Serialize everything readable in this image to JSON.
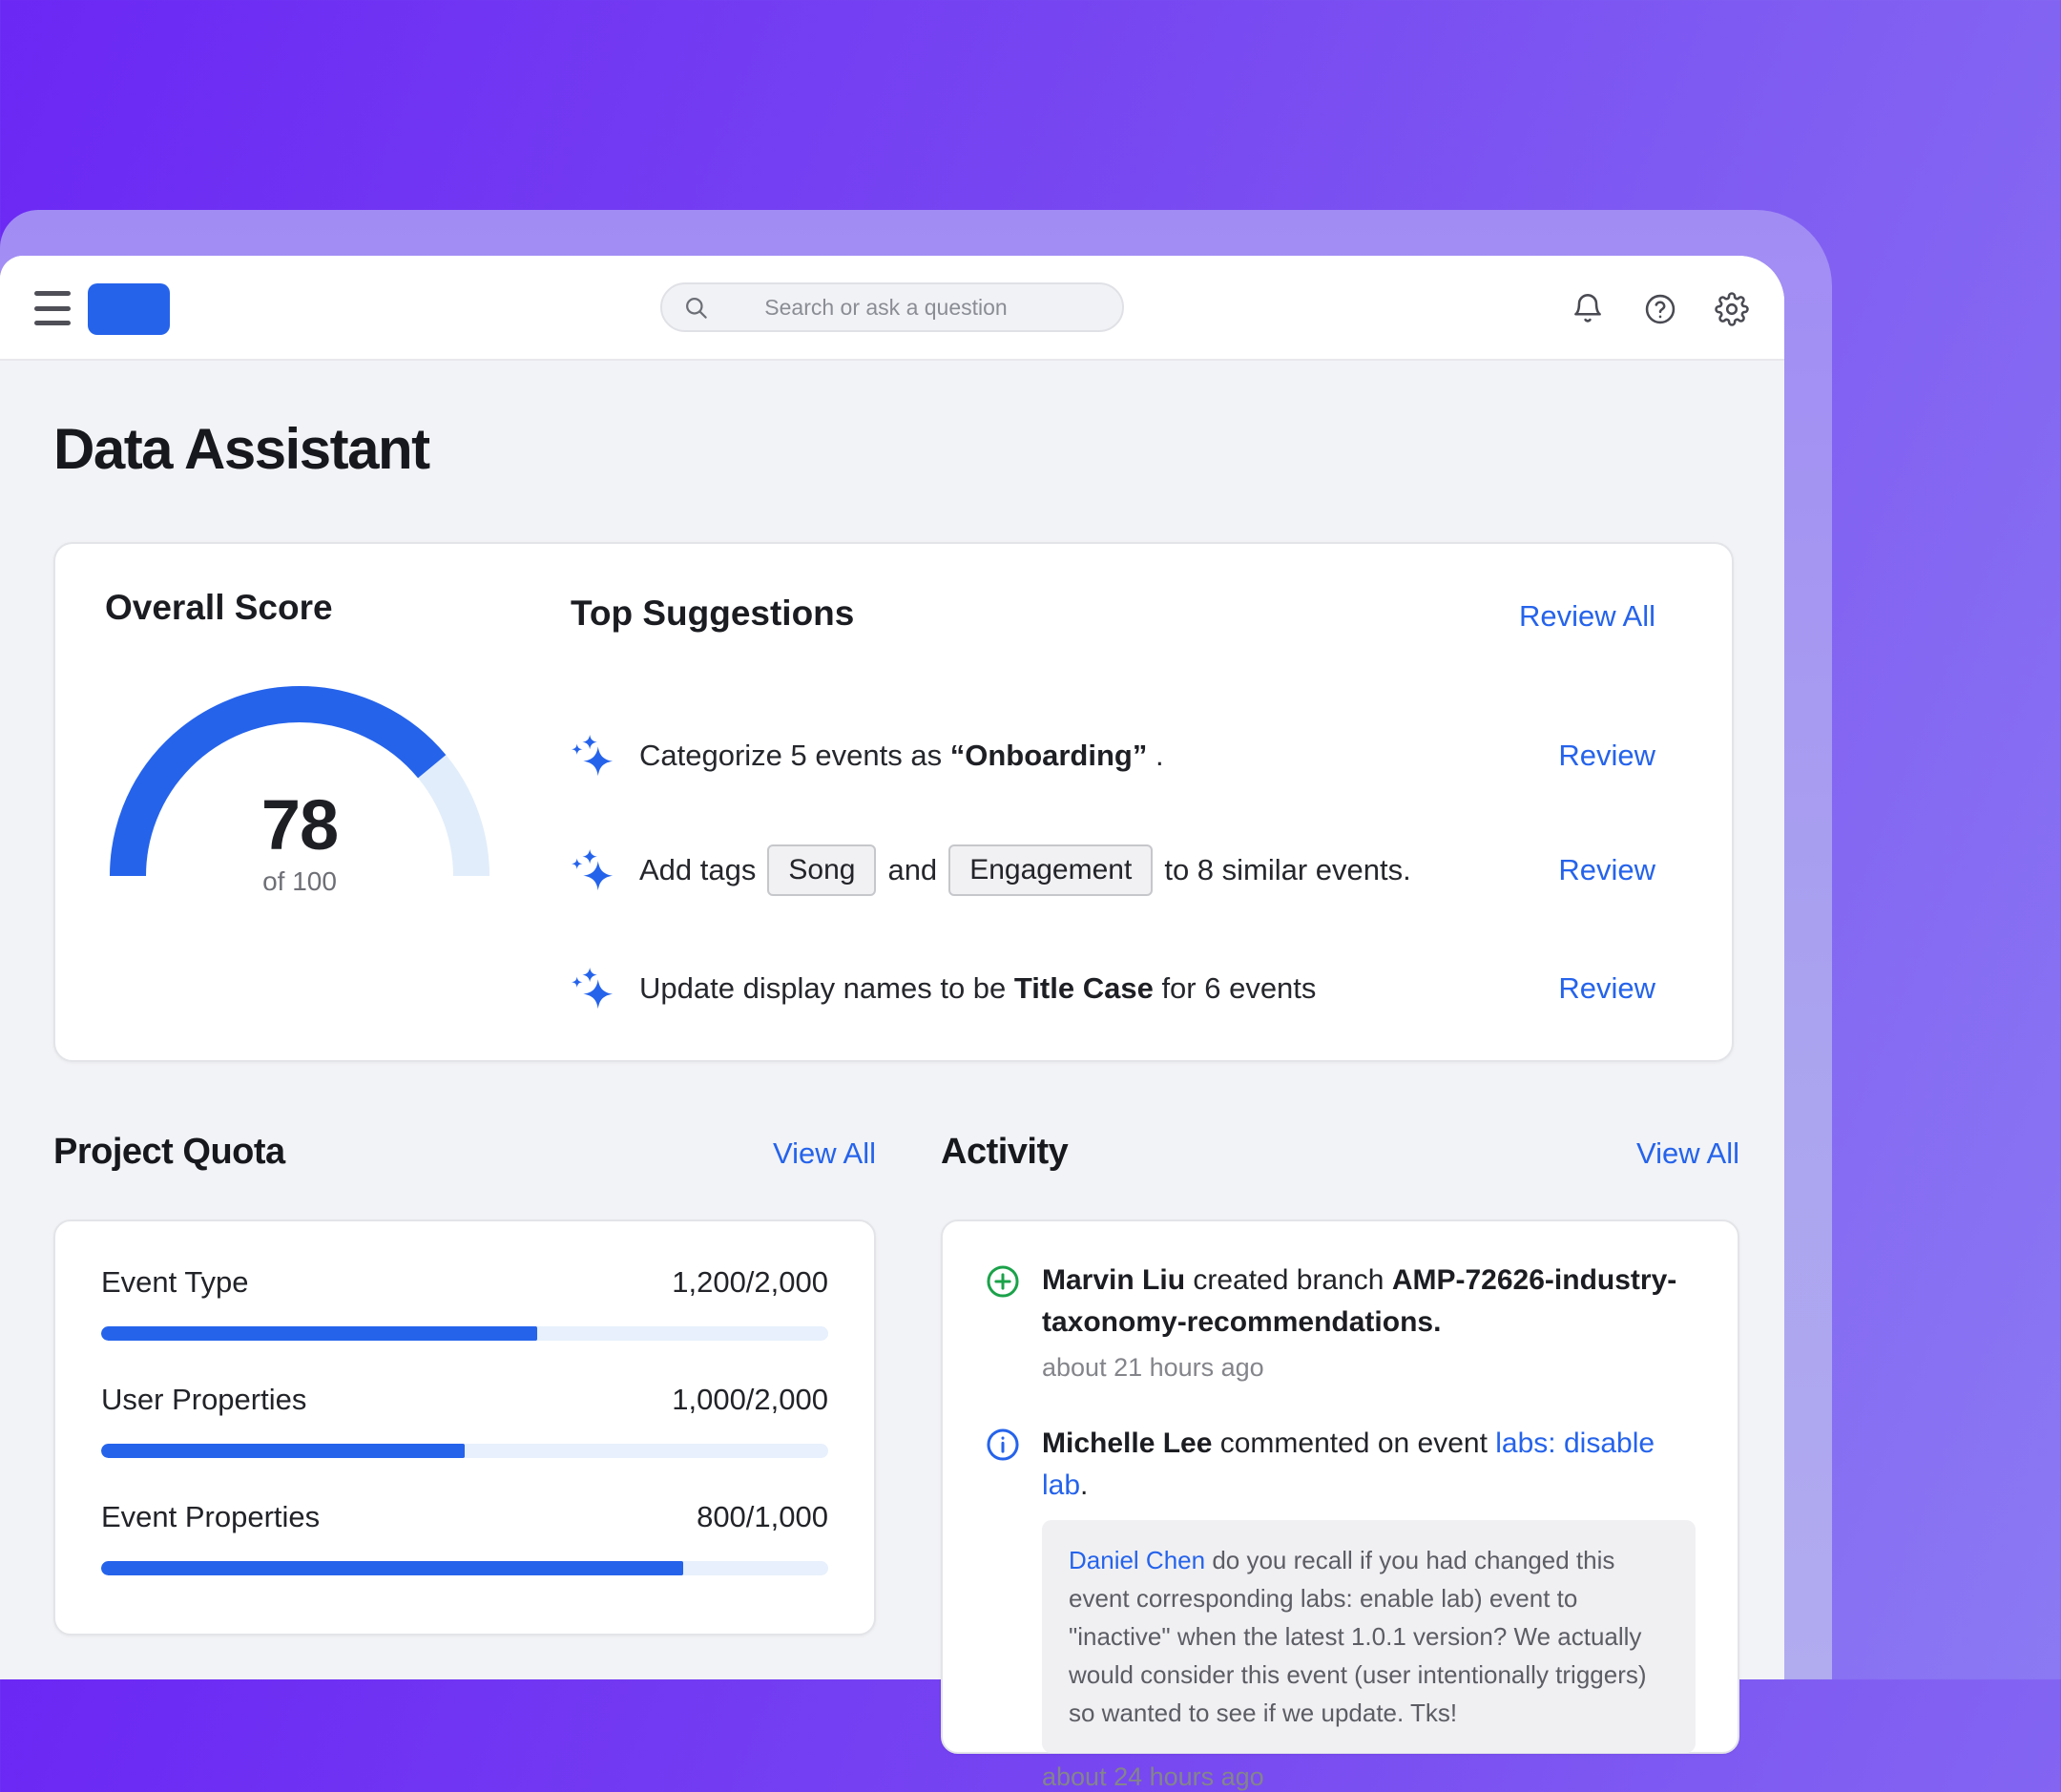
{
  "header": {
    "search_placeholder": "Search or ask a question",
    "icons": [
      "menu-icon",
      "bell-icon",
      "help-icon",
      "gear-icon"
    ]
  },
  "page": {
    "title": "Data Assistant"
  },
  "score_card": {
    "title": "Overall Score",
    "value": "78",
    "value_pct": 78,
    "of_label": "of 100",
    "suggestions_title": "Top Suggestions",
    "review_all": "Review All",
    "suggestions": [
      {
        "prefix": "Categorize 5 events as",
        "bold": "“Onboarding”",
        "suffix": ".",
        "review": "Review"
      },
      {
        "prefix": "Add tags",
        "tag1": "Song",
        "mid": "and",
        "tag2": "Engagement",
        "suffix": "to  8 similar events.",
        "review": "Review"
      },
      {
        "prefix": "Update display names to be",
        "bold": "Title Case",
        "suffix": "for 6 events",
        "review": "Review"
      }
    ]
  },
  "quota": {
    "title": "Project Quota",
    "view_all": "View All",
    "rows": [
      {
        "label": "Event Type",
        "value": "1,200/2,000",
        "percent": 60
      },
      {
        "label": "User Properties",
        "value": "1,000/2,000",
        "percent": 50
      },
      {
        "label": "Event Properties",
        "value": "800/1,000",
        "percent": 80
      }
    ]
  },
  "activity": {
    "title": "Activity",
    "view_all": "View All",
    "items": [
      {
        "icon": "plus-circle-icon",
        "name": "Marvin Liu",
        "action": "created branch",
        "target": "AMP-72626-industry-taxonomy-recommendations.",
        "time": "about 21 hours ago"
      },
      {
        "icon": "info-circle-icon",
        "name": "Michelle Lee",
        "action": "commented on event",
        "link": "labs: disable lab",
        "after_link": ".",
        "comment_mention": "Daniel Chen",
        "comment_text": "do you recall if you had changed this event corresponding labs: enable lab) event to \"inactive\" when the latest 1.0.1 version? We actually would consider this event (user intentionally triggers) so wanted to see if we update. Tks!",
        "time": "about 24 hours ago"
      }
    ]
  },
  "colors": {
    "accent_blue": "#2563eb",
    "gauge_track": "#e1edfb",
    "quota_track": "#e7f0fc",
    "success_green": "#1ba24a",
    "bg_gradient_start": "#6b27f4",
    "bg_gradient_end": "#8b79f3",
    "frame_purple": "#a99ff0"
  }
}
